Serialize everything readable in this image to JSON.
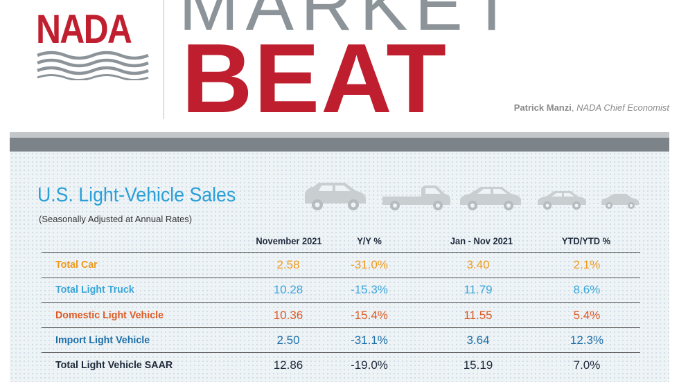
{
  "header": {
    "logo_text": "NADA",
    "title_line1": "MARKET",
    "title_line2": "BEAT",
    "author_name": "Patrick Manzi",
    "author_role": "NADA Chief Economist"
  },
  "section": {
    "title": "U.S. Light-Vehicle Sales",
    "subtitle": "(Seasonally Adjusted at Annual Rates)"
  },
  "colors": {
    "brand_red": "#bf1e2e",
    "title_gray": "#8c9499",
    "title_blue": "#2a9fd8",
    "car_orange": "#ef9a1d",
    "truck_blue": "#3aa6d9",
    "domestic_orange": "#dd5a23",
    "import_blue": "#1e6fa8",
    "total_navy": "#1e2a3a"
  },
  "table": {
    "columns": [
      "November 2021",
      "Y/Y %",
      "Jan - Nov 2021",
      "YTD/YTD %"
    ],
    "rows": [
      {
        "label": "Total Car",
        "nov": "2.58",
        "yy": "-31.0%",
        "ytd": "3.40",
        "ytdpct": "2.1%"
      },
      {
        "label": "Total Light Truck",
        "nov": "10.28",
        "yy": "-15.3%",
        "ytd": "11.79",
        "ytdpct": "8.6%"
      },
      {
        "label": "Domestic Light Vehicle",
        "nov": "10.36",
        "yy": "-15.4%",
        "ytd": "11.55",
        "ytdpct": "5.4%"
      },
      {
        "label": "Import Light Vehicle",
        "nov": "2.50",
        "yy": "-31.1%",
        "ytd": "3.64",
        "ytdpct": "12.3%"
      },
      {
        "label": "Total Light Vehicle SAAR",
        "nov": "12.86",
        "yy": "-19.0%",
        "ytd": "15.19",
        "ytdpct": "7.0%"
      }
    ]
  },
  "icons": [
    "suv-icon",
    "pickup-truck-icon",
    "sedan-icon",
    "compact-car-icon",
    "small-car-icon"
  ]
}
